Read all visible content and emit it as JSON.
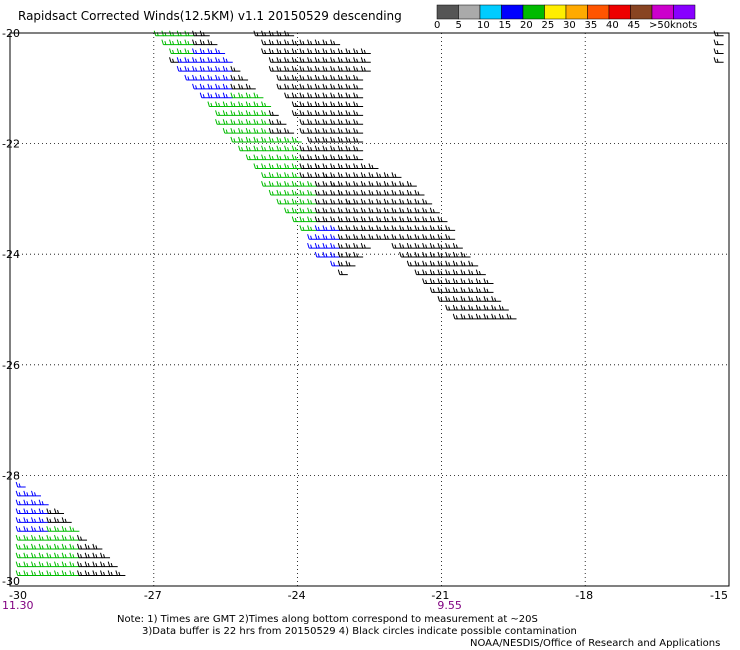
{
  "header": {
    "title": "Rapidsact Corrected Winds(12.5KM) v1.1 20150529 descending"
  },
  "legend": {
    "unit": "knots",
    "bins": [
      {
        "label": "0",
        "color": "#555555"
      },
      {
        "label": "5",
        "color": "#aaaaaa"
      },
      {
        "label": "10",
        "color": "#00ccff"
      },
      {
        "label": "15",
        "color": "#0000ff"
      },
      {
        "label": "20",
        "color": "#00bb00"
      },
      {
        "label": "25",
        "color": "#ffee00"
      },
      {
        "label": "30",
        "color": "#ffaa00"
      },
      {
        "label": "35",
        "color": "#ff5500"
      },
      {
        "label": "40",
        "color": "#ee0000"
      },
      {
        "label": "45",
        "color": "#884422"
      },
      {
        "label": ">50",
        "color": "#cc00cc"
      },
      {
        "label": "",
        "color": "#8800ff"
      }
    ]
  },
  "chart_data": {
    "type": "wind-barb map",
    "xlabel": "",
    "ylabel": "",
    "xlim": [
      -30,
      -15
    ],
    "ylim": [
      -30,
      -20
    ],
    "x_ticks": [
      "-30",
      "-27",
      "-24",
      "-21",
      "-18",
      "-15"
    ],
    "y_ticks": [
      "-20",
      "-22",
      "-24",
      "-26",
      "-28",
      "-30"
    ],
    "grid": true,
    "time_labels": [
      {
        "lon": -30,
        "text": "11.30"
      },
      {
        "lon": -21,
        "text": "9.55"
      }
    ],
    "swaths": [
      {
        "name": "",
        "polygon": [
          [
            -27.2,
            -19.9
          ],
          [
            -26.0,
            -19.9
          ],
          [
            -23.0,
            -23.0
          ],
          [
            -22.4,
            -23.8
          ],
          [
            -23.1,
            -24.4
          ],
          [
            -23.6,
            -24.1
          ]
        ]
      },
      {
        "name": "",
        "polygon": [
          [
            -25.0,
            -19.9
          ],
          [
            -22.6,
            -20.3
          ],
          [
            -22.8,
            -22.3
          ],
          [
            -21.5,
            -22.8
          ],
          [
            -19.5,
            -25.2
          ],
          [
            -20.8,
            -25.2
          ],
          [
            -23.6,
            -22.5
          ]
        ]
      },
      {
        "name": "",
        "polygon": [
          [
            -15.4,
            -19.9
          ],
          [
            -15.0,
            -19.9
          ],
          [
            -15.0,
            -20.7
          ],
          [
            -15.2,
            -21.1
          ]
        ]
      },
      {
        "name": "",
        "polygon": [
          [
            -30.0,
            -28.1
          ],
          [
            -29.4,
            -28.4
          ],
          [
            -27.5,
            -29.9
          ],
          [
            -30.0,
            -29.9
          ]
        ]
      }
    ],
    "color_zones": [
      {
        "lat": -20.0,
        "lon_min": -27.0,
        "lon_max": -26.2,
        "speed_kt": 22
      },
      {
        "lat": -20.8,
        "lon_min": -26.6,
        "lon_max": -25.4,
        "speed_kt": 18
      },
      {
        "lat": -21.6,
        "lon_min": -26.0,
        "lon_max": -24.6,
        "speed_kt": 21
      },
      {
        "lat": -22.4,
        "lon_min": -25.4,
        "lon_max": -24.0,
        "speed_kt": 21
      },
      {
        "lat": -23.2,
        "lon_min": -24.8,
        "lon_max": -23.6,
        "speed_kt": 21
      },
      {
        "lat": -24.0,
        "lon_min": -24.2,
        "lon_max": -23.2,
        "speed_kt": 16
      },
      {
        "lat": -28.6,
        "lon_min": -30.0,
        "lon_max": -29.3,
        "speed_kt": 16
      },
      {
        "lat": -29.4,
        "lon_min": -30.0,
        "lon_max": -28.6,
        "speed_kt": 21
      }
    ]
  },
  "notes": {
    "line1": "Note: 1) Times are GMT 2)Times along bottom correspond to measurement at ~20S",
    "line2": "3)Data buffer is 22 hrs from 20150529 4) Black circles indicate possible contamination",
    "line3": "NOAA/NESDIS/Office of Research and Applications"
  }
}
